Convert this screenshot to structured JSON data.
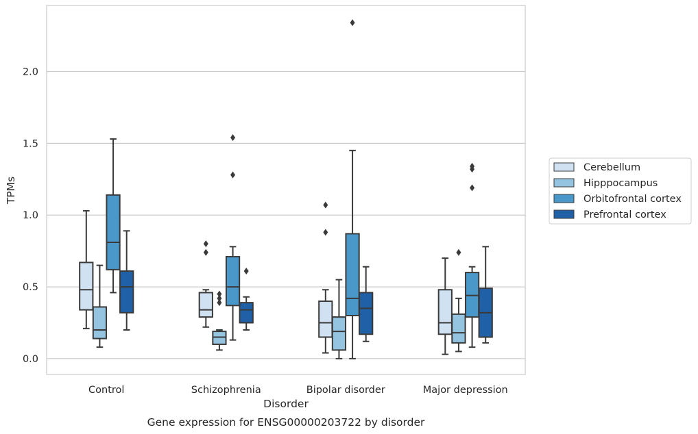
{
  "chart_data": {
    "type": "boxplot",
    "title": "",
    "caption": "Gene expression for ENSG00000203722 by disorder",
    "xlabel": "Disorder",
    "ylabel": "TPMs",
    "ylim": [
      -0.11,
      2.46
    ],
    "yticks": [
      0.0,
      0.5,
      1.0,
      1.5,
      2.0
    ],
    "ytick_labels": [
      "0.0",
      "0.5",
      "1.0",
      "1.5",
      "2.0"
    ],
    "grid": "horizontal",
    "legend_position": "right",
    "categories": [
      "Control",
      "Schizophrenia",
      "Bipolar disorder",
      "Major depression"
    ],
    "series": [
      {
        "name": "Cerebellum",
        "color": "#d0e1f2",
        "boxes": [
          {
            "whislo": 0.21,
            "q1": 0.34,
            "med": 0.48,
            "q3": 0.67,
            "whishi": 1.03,
            "fliers": []
          },
          {
            "whislo": 0.22,
            "q1": 0.29,
            "med": 0.34,
            "q3": 0.46,
            "whishi": 0.48,
            "fliers": [
              0.74,
              0.8
            ]
          },
          {
            "whislo": 0.04,
            "q1": 0.15,
            "med": 0.25,
            "q3": 0.4,
            "whishi": 0.48,
            "fliers": [
              0.88,
              1.07
            ]
          },
          {
            "whislo": 0.03,
            "q1": 0.17,
            "med": 0.25,
            "q3": 0.48,
            "whishi": 0.7,
            "fliers": []
          }
        ]
      },
      {
        "name": "Hipppocampus",
        "color": "#94c4df",
        "boxes": [
          {
            "whislo": 0.08,
            "q1": 0.14,
            "med": 0.2,
            "q3": 0.36,
            "whishi": 0.65,
            "fliers": []
          },
          {
            "whislo": 0.06,
            "q1": 0.1,
            "med": 0.15,
            "q3": 0.19,
            "whishi": 0.2,
            "fliers": [
              0.39,
              0.42,
              0.45
            ]
          },
          {
            "whislo": 0.0,
            "q1": 0.06,
            "med": 0.19,
            "q3": 0.29,
            "whishi": 0.55,
            "fliers": []
          },
          {
            "whislo": 0.05,
            "q1": 0.11,
            "med": 0.18,
            "q3": 0.31,
            "whishi": 0.42,
            "fliers": [
              0.74
            ]
          }
        ]
      },
      {
        "name": "Orbitofrontal cortex",
        "color": "#4a98c9",
        "boxes": [
          {
            "whislo": 0.46,
            "q1": 0.62,
            "med": 0.81,
            "q3": 1.14,
            "whishi": 1.53,
            "fliers": []
          },
          {
            "whislo": 0.13,
            "q1": 0.37,
            "med": 0.5,
            "q3": 0.71,
            "whishi": 0.78,
            "fliers": [
              1.28,
              1.54
            ]
          },
          {
            "whislo": 0.0,
            "q1": 0.3,
            "med": 0.42,
            "q3": 0.87,
            "whishi": 1.45,
            "fliers": [
              2.34
            ]
          },
          {
            "whislo": 0.08,
            "q1": 0.29,
            "med": 0.44,
            "q3": 0.6,
            "whishi": 0.64,
            "fliers": [
              1.19,
              1.32,
              1.34
            ]
          }
        ]
      },
      {
        "name": "Prefrontal cortex",
        "color": "#2060a7",
        "boxes": [
          {
            "whislo": 0.2,
            "q1": 0.32,
            "med": 0.5,
            "q3": 0.61,
            "whishi": 0.89,
            "fliers": []
          },
          {
            "whislo": 0.2,
            "q1": 0.25,
            "med": 0.34,
            "q3": 0.39,
            "whishi": 0.43,
            "fliers": [
              0.61
            ]
          },
          {
            "whislo": 0.12,
            "q1": 0.17,
            "med": 0.35,
            "q3": 0.46,
            "whishi": 0.64,
            "fliers": []
          },
          {
            "whislo": 0.11,
            "q1": 0.15,
            "med": 0.32,
            "q3": 0.49,
            "whishi": 0.78,
            "fliers": []
          }
        ]
      }
    ]
  }
}
